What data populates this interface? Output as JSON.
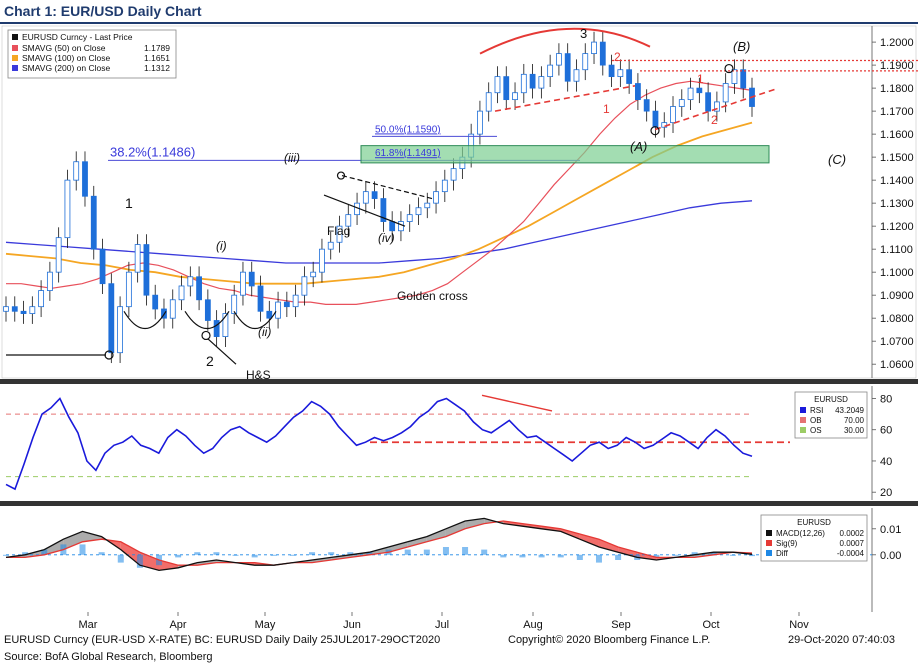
{
  "title": "Chart 1: EUR/USD Daily Chart",
  "chart_data": [
    {
      "type": "line",
      "panel": "price",
      "ylim": [
        1.054,
        1.207
      ],
      "y_ticks": [
        "1.2000",
        "1.1900",
        "1.1800",
        "1.1700",
        "1.1600",
        "1.1500",
        "1.1400",
        "1.1300",
        "1.1200",
        "1.1100",
        "1.1000",
        "1.0900",
        "1.0800",
        "1.0700",
        "1.0600"
      ],
      "y_tick_values": [
        1.2,
        1.19,
        1.18,
        1.17,
        1.16,
        1.15,
        1.14,
        1.13,
        1.12,
        1.11,
        1.1,
        1.09,
        1.08,
        1.07,
        1.06
      ],
      "x_ticks": [
        "Mar",
        "Apr",
        "May",
        "Jun",
        "Jul",
        "Aug",
        "Sep",
        "Oct",
        "Nov"
      ],
      "x_year": "2020",
      "legend": {
        "title": "EURUSD Curncy - Last Price",
        "items": [
          {
            "label": "SMAVG (50)  on Close",
            "value": "1.1789",
            "color": "#e8505b"
          },
          {
            "label": "SMAVG (100)  on Close",
            "value": "1.1651",
            "color": "#f5a623"
          },
          {
            "label": "SMAVG (200)  on Close",
            "value": "1.1312",
            "color": "#3a3adb"
          }
        ]
      },
      "price_series": {
        "name": "EURUSD Curncy - Last Price",
        "values": [
          1.085,
          1.083,
          1.082,
          1.085,
          1.092,
          1.1,
          1.115,
          1.14,
          1.148,
          1.133,
          1.11,
          1.095,
          1.065,
          1.085,
          1.1,
          1.112,
          1.09,
          1.084,
          1.08,
          1.088,
          1.094,
          1.098,
          1.088,
          1.079,
          1.072,
          1.082,
          1.09,
          1.1,
          1.094,
          1.083,
          1.08,
          1.087,
          1.085,
          1.09,
          1.098,
          1.1,
          1.11,
          1.113,
          1.12,
          1.125,
          1.13,
          1.135,
          1.132,
          1.122,
          1.118,
          1.122,
          1.125,
          1.128,
          1.13,
          1.135,
          1.14,
          1.145,
          1.15,
          1.16,
          1.17,
          1.178,
          1.185,
          1.175,
          1.178,
          1.186,
          1.18,
          1.185,
          1.19,
          1.195,
          1.183,
          1.188,
          1.195,
          1.2,
          1.19,
          1.185,
          1.188,
          1.182,
          1.175,
          1.17,
          1.163,
          1.165,
          1.172,
          1.175,
          1.18,
          1.178,
          1.17,
          1.174,
          1.182,
          1.188,
          1.18,
          1.172
        ],
        "ma50": [
          1.095,
          1.095,
          1.094,
          1.093,
          1.094,
          1.095,
          1.097,
          1.1,
          1.103,
          1.104,
          1.103,
          1.101,
          1.098,
          1.095,
          1.093,
          1.092,
          1.09,
          1.089,
          1.088,
          1.087,
          1.087,
          1.086,
          1.086,
          1.086,
          1.087,
          1.088,
          1.089,
          1.09,
          1.092,
          1.095,
          1.1,
          1.105,
          1.11,
          1.116,
          1.122,
          1.13,
          1.138,
          1.145,
          1.152,
          1.16,
          1.167,
          1.173,
          1.177,
          1.18,
          1.182,
          1.183,
          1.182,
          1.181,
          1.18,
          1.179
        ],
        "ma100": [
          1.108,
          1.107,
          1.106,
          1.104,
          1.103,
          1.101,
          1.1,
          1.098,
          1.097,
          1.096,
          1.095,
          1.095,
          1.095,
          1.096,
          1.097,
          1.098,
          1.1,
          1.103,
          1.106,
          1.11,
          1.115,
          1.12,
          1.126,
          1.132,
          1.138,
          1.144,
          1.15,
          1.155,
          1.159,
          1.162,
          1.165
        ],
        "ma200": [
          1.113,
          1.112,
          1.111,
          1.11,
          1.109,
          1.108,
          1.107,
          1.106,
          1.105,
          1.104,
          1.104,
          1.104,
          1.104,
          1.105,
          1.106,
          1.108,
          1.11,
          1.113,
          1.116,
          1.119,
          1.122,
          1.125,
          1.128,
          1.13,
          1.131
        ]
      },
      "levels": [
        {
          "label": "38.2%(1.1486)",
          "value": 1.1486
        },
        {
          "label": "50.0%(1.1590)",
          "value": 1.159
        },
        {
          "label": "61.8%(1.1491)",
          "value": 1.1491
        }
      ],
      "annotations": [
        "1",
        "2",
        "3",
        "(i)",
        "(ii)",
        "(iii)",
        "(iv)",
        "Flag",
        "H&S",
        "Golden cross",
        "(A)",
        "(B)",
        "(C)",
        "2",
        "1",
        "1",
        "2"
      ]
    },
    {
      "type": "line",
      "panel": "rsi",
      "ylim": [
        15,
        88
      ],
      "y_ticks": [
        "80",
        "60",
        "40",
        "20"
      ],
      "y_tick_values": [
        80,
        60,
        40,
        20
      ],
      "legend": {
        "title": "EURUSD",
        "items": [
          {
            "label": "RSI",
            "value": "43.2049",
            "color": "#1a1adb"
          },
          {
            "label": "OB",
            "value": "70.00",
            "color": "#e57373"
          },
          {
            "label": "OS",
            "value": "30.00",
            "color": "#9ccc65"
          }
        ]
      },
      "overbought": 70,
      "oversold": 30,
      "support": 52,
      "values": [
        25,
        22,
        38,
        55,
        70,
        74,
        80,
        68,
        58,
        40,
        34,
        45,
        50,
        52,
        56,
        50,
        48,
        45,
        55,
        60,
        56,
        50,
        45,
        48,
        55,
        60,
        62,
        58,
        55,
        52,
        56,
        62,
        68,
        72,
        78,
        75,
        70,
        62,
        56,
        50,
        52,
        55,
        53,
        55,
        58,
        62,
        68,
        72,
        78,
        80,
        76,
        72,
        65,
        60,
        58,
        62,
        66,
        60,
        55,
        56,
        52,
        48,
        44,
        40,
        45,
        50,
        52,
        48,
        50,
        55,
        52,
        48,
        50,
        54,
        58,
        56,
        52,
        48,
        55,
        60,
        56,
        50,
        45,
        43
      ]
    },
    {
      "type": "line",
      "panel": "macd",
      "ylim": [
        -0.022,
        0.018
      ],
      "y_ticks": [
        "0.01",
        "0.00"
      ],
      "y_tick_values": [
        0.01,
        0.0
      ],
      "legend": {
        "title": "EURUSD",
        "items": [
          {
            "label": "MACD(12,26)",
            "value": "0.0002",
            "color": "#111111"
          },
          {
            "label": "Sig(9)",
            "value": "0.0007",
            "color": "#e53935"
          },
          {
            "label": "Diff",
            "value": "-0.0004",
            "color": "#1e88e5"
          }
        ]
      },
      "macd": [
        -0.001,
        0.0,
        0.002,
        0.006,
        0.009,
        0.007,
        0.002,
        -0.004,
        -0.006,
        -0.005,
        -0.003,
        -0.002,
        -0.003,
        -0.004,
        -0.004,
        -0.003,
        -0.002,
        -0.001,
        0.0,
        0.001,
        0.003,
        0.005,
        0.007,
        0.01,
        0.013,
        0.014,
        0.012,
        0.011,
        0.01,
        0.009,
        0.006,
        0.003,
        0.001,
        -0.001,
        -0.002,
        -0.001,
        0.0,
        0.001,
        0.001,
        0.0002
      ],
      "signal": [
        -0.001,
        -0.001,
        0.0,
        0.002,
        0.005,
        0.006,
        0.005,
        0.001,
        -0.002,
        -0.004,
        -0.004,
        -0.003,
        -0.003,
        -0.003,
        -0.004,
        -0.003,
        -0.003,
        -0.002,
        -0.001,
        0.0,
        0.001,
        0.003,
        0.005,
        0.007,
        0.01,
        0.012,
        0.013,
        0.012,
        0.011,
        0.01,
        0.008,
        0.006,
        0.003,
        0.001,
        -0.001,
        -0.001,
        -0.001,
        0.0,
        0.001,
        0.0007
      ]
    }
  ],
  "footer": {
    "left": "EURUSD Curncy (EUR-USD X-RATE) BC: EURUSD Daily  Daily 25JUL2017-29OCT2020",
    "center": "Copyright© 2020 Bloomberg Finance L.P.",
    "right": "29-Oct-2020 07:40:03"
  },
  "source": "Source: BofA Global Research, Bloomberg"
}
